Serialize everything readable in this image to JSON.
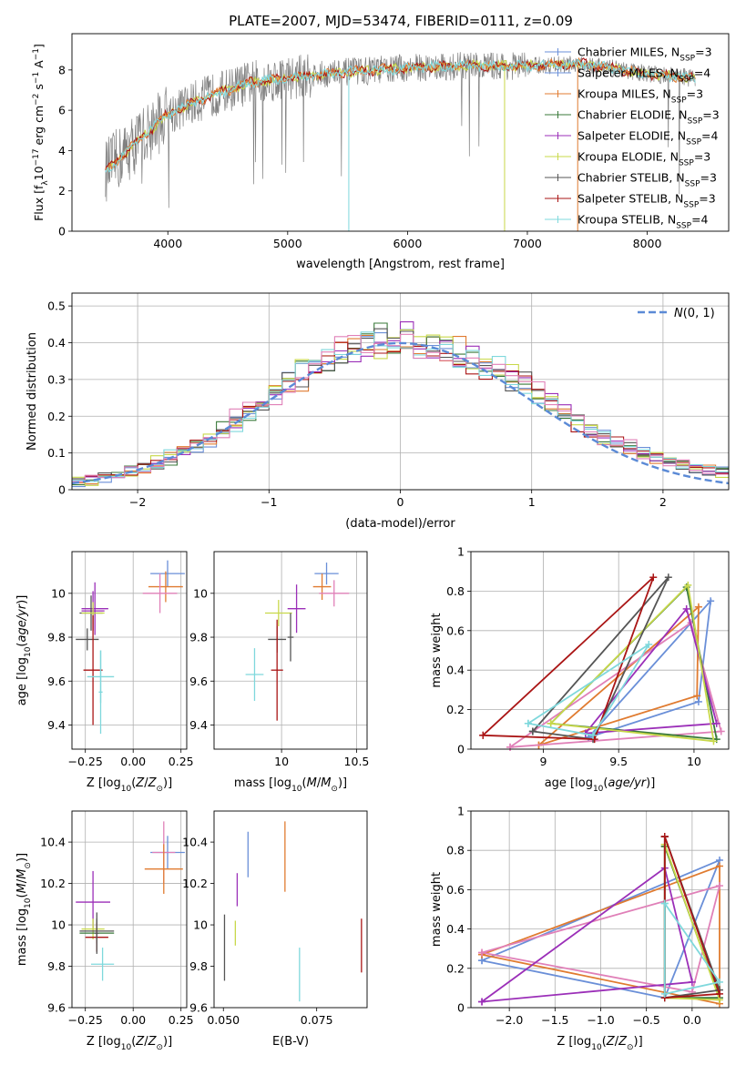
{
  "figure_title": "PLATE=2007, MJD=53474, FIBERID=0111, z=0.09",
  "palette": {
    "Chabrier MILES": "#6a8fd8",
    "Salpeter MILES": "#6a8fd8",
    "Kroupa MILES": "#e07b30",
    "Chabrier ELODIE": "#3a7a3a",
    "Salpeter ELODIE": "#9b2fb8",
    "Kroupa ELODIE": "#c8d84a",
    "Chabrier STELIB": "#555555",
    "Salpeter STELIB": "#aa1515",
    "Kroupa STELIB": "#7fd8dc",
    "pink": "#e080b8"
  },
  "chart_data": [
    {
      "id": "spectrum",
      "type": "line",
      "title": "",
      "xlabel": "wavelength [Angstrom, rest frame]",
      "ylabel": "Flux [f_λ 10^-17 erg cm^-2 s^-1 A^-1]",
      "xlim": [
        3200,
        8680
      ],
      "ylim": [
        0,
        9.8
      ],
      "xticks": [
        4000,
        5000,
        6000,
        7000,
        8000
      ],
      "yticks": [
        0,
        2,
        4,
        6,
        8
      ],
      "grid": false,
      "legend_position": "right",
      "legend": [
        {
          "label": "Chabrier MILES, N_SSP=3",
          "color": "#6a8fd8"
        },
        {
          "label": "Salpeter MILES, N_SSP=4",
          "color": "#6a8fd8"
        },
        {
          "label": "Kroupa MILES, N_SSP=3",
          "color": "#e07b30"
        },
        {
          "label": "Chabrier ELODIE, N_SSP=3",
          "color": "#3a7a3a"
        },
        {
          "label": "Salpeter ELODIE, N_SSP=4",
          "color": "#9b2fb8"
        },
        {
          "label": "Kroupa ELODIE, N_SSP=3",
          "color": "#c8d84a"
        },
        {
          "label": "Chabrier STELIB, N_SSP=3",
          "color": "#555555"
        },
        {
          "label": "Salpeter STELIB, N_SSP=3",
          "color": "#aa1515"
        },
        {
          "label": "Kroupa STELIB, N_SSP=4",
          "color": "#7fd8dc"
        }
      ],
      "data_shape": {
        "x": [
          3500,
          3700,
          4000,
          4300,
          4700,
          5000,
          5500,
          6000,
          6500,
          7000,
          7500,
          8000,
          8400
        ],
        "y": [
          3.1,
          4.2,
          5.8,
          6.6,
          7.4,
          7.6,
          7.9,
          8.1,
          8.2,
          8.2,
          8.3,
          7.8,
          7.6
        ]
      }
    },
    {
      "id": "residuals",
      "type": "bar",
      "xlabel": "(data-model)/error",
      "ylabel": "Normed distribution",
      "xlim": [
        -2.5,
        2.5
      ],
      "ylim": [
        0,
        0.535
      ],
      "xticks": [
        -2,
        -1,
        0,
        1,
        2
      ],
      "yticks": [
        0,
        0.1,
        0.2,
        0.3,
        0.4,
        0.5
      ],
      "grid": true,
      "legend_position": "top-right",
      "legend": [
        {
          "label": "N(0,1)",
          "color": "#5b8ad6"
        }
      ],
      "histogram_bin_width": 0.1,
      "series": [
        {
          "name": "N(0,1)",
          "type": "gaussian",
          "mean": 0,
          "sigma": 1
        }
      ]
    },
    {
      "id": "age_vs_Z",
      "type": "scatter",
      "xlabel": "Z [log10(Z/Z_sun)]",
      "ylabel": "age [log10(age/yr)]",
      "xlim": [
        -0.32,
        0.28
      ],
      "ylim": [
        9.29,
        10.19
      ],
      "xticks": [
        -0.25,
        0.0,
        0.25
      ],
      "xticklabels": [
        "−0.25",
        "0.00",
        "0.25"
      ],
      "yticks": [
        9.4,
        9.6,
        9.8,
        10.0
      ],
      "grid": true,
      "points": [
        {
          "x": 0.18,
          "y": 10.09,
          "xerr": 0.09,
          "yerr": 0.06,
          "color": "#6a8fd8"
        },
        {
          "x": 0.17,
          "y": 10.03,
          "xerr": 0.09,
          "yerr": 0.07,
          "color": "#e07b30"
        },
        {
          "x": 0.14,
          "y": 10.0,
          "xerr": 0.09,
          "yerr": 0.09,
          "color": "#e080b8"
        },
        {
          "x": -0.21,
          "y": 9.92,
          "xerr": 0.06,
          "yerr": 0.09,
          "color": "#9b2fb8"
        },
        {
          "x": -0.2,
          "y": 9.93,
          "xerr": 0.07,
          "yerr": 0.12,
          "color": "#9b2fb8"
        },
        {
          "x": -0.22,
          "y": 9.91,
          "xerr": 0.06,
          "yerr": 0.08,
          "color": "#555555"
        },
        {
          "x": -0.21,
          "y": 9.91,
          "xerr": 0.06,
          "yerr": 0.05,
          "color": "#c8d84a"
        },
        {
          "x": -0.24,
          "y": 9.79,
          "xerr": 0.06,
          "yerr": 0.05,
          "color": "#555555"
        },
        {
          "x": -0.21,
          "y": 9.65,
          "xerr": 0.05,
          "yerr": 0.25,
          "color": "#aa1515"
        },
        {
          "x": -0.17,
          "y": 9.62,
          "xerr": 0.07,
          "yerr": 0.12,
          "color": "#7fd8dc"
        },
        {
          "x": -0.17,
          "y": 9.55,
          "xerr": 0.01,
          "yerr": 0.19,
          "color": "#7fd8dc"
        }
      ]
    },
    {
      "id": "age_vs_mass",
      "type": "scatter",
      "xlabel": "mass [log10(M/M_sun)]",
      "ylabel": "",
      "xlim": [
        9.55,
        10.57
      ],
      "ylim": [
        9.29,
        10.19
      ],
      "xticks": [
        10.0,
        10.5
      ],
      "yticks": [
        9.4,
        9.6,
        9.8,
        10.0
      ],
      "grid": true,
      "points": [
        {
          "x": 10.3,
          "y": 10.09,
          "xerr": 0.08,
          "yerr": 0.05,
          "color": "#6a8fd8"
        },
        {
          "x": 10.27,
          "y": 10.03,
          "xerr": 0.06,
          "yerr": 0.06,
          "color": "#e07b30"
        },
        {
          "x": 10.35,
          "y": 10.0,
          "xerr": 0.1,
          "yerr": 0.06,
          "color": "#e080b8"
        },
        {
          "x": 10.1,
          "y": 9.93,
          "xerr": 0.06,
          "yerr": 0.11,
          "color": "#9b2fb8"
        },
        {
          "x": 9.98,
          "y": 9.91,
          "xerr": 0.09,
          "yerr": 0.06,
          "color": "#c8d84a"
        },
        {
          "x": 9.97,
          "y": 9.79,
          "xerr": 0.06,
          "yerr": 0.06,
          "color": "#555555"
        },
        {
          "x": 9.97,
          "y": 9.65,
          "xerr": 0.04,
          "yerr": 0.23,
          "color": "#aa1515"
        },
        {
          "x": 9.82,
          "y": 9.63,
          "xerr": 0.06,
          "yerr": 0.12,
          "color": "#7fd8dc"
        },
        {
          "x": 10.06,
          "y": 9.8,
          "xerr": 0.02,
          "yerr": 0.11,
          "color": "#555555"
        }
      ]
    },
    {
      "id": "weight_vs_age",
      "type": "line",
      "xlabel": "age [log10(age/yr)]",
      "ylabel": "mass weight",
      "xlim": [
        8.52,
        10.23
      ],
      "ylim": [
        0,
        1.0
      ],
      "xticks": [
        9.0,
        9.5,
        10.0
      ],
      "yticks": [
        0.0,
        0.2,
        0.4,
        0.6,
        0.8,
        1.0
      ],
      "grid": true,
      "series": [
        {
          "color": "#6a8fd8",
          "x": [
            9.3,
            10.03,
            10.11,
            9.3
          ],
          "y": [
            0.06,
            0.24,
            0.75,
            0.06
          ]
        },
        {
          "color": "#e07b30",
          "x": [
            8.97,
            10.02,
            10.03,
            8.97
          ],
          "y": [
            0.02,
            0.27,
            0.72,
            0.02
          ]
        },
        {
          "color": "#e080b8",
          "x": [
            8.78,
            9.98,
            10.18,
            8.78
          ],
          "y": [
            0.01,
            0.64,
            0.09,
            0.01
          ]
        },
        {
          "color": "#3a7a3a",
          "x": [
            9.05,
            9.95,
            10.15,
            9.05
          ],
          "y": [
            0.13,
            0.82,
            0.05,
            0.13
          ]
        },
        {
          "color": "#9b2fb8",
          "x": [
            9.28,
            9.95,
            10.15,
            9.28
          ],
          "y": [
            0.08,
            0.71,
            0.13,
            0.08
          ]
        },
        {
          "color": "#c8d84a",
          "x": [
            9.05,
            9.96,
            10.13,
            9.05
          ],
          "y": [
            0.13,
            0.83,
            0.04,
            0.13
          ]
        },
        {
          "color": "#555555",
          "x": [
            8.93,
            9.83,
            9.33,
            8.93
          ],
          "y": [
            0.09,
            0.87,
            0.05,
            0.09
          ]
        },
        {
          "color": "#aa1515",
          "x": [
            8.6,
            9.73,
            9.34,
            8.6
          ],
          "y": [
            0.07,
            0.87,
            0.05,
            0.07
          ]
        },
        {
          "color": "#7fd8dc",
          "x": [
            8.9,
            9.7,
            9.33,
            8.9
          ],
          "y": [
            0.13,
            0.53,
            0.07,
            0.13
          ]
        }
      ]
    },
    {
      "id": "mass_vs_Z",
      "type": "scatter",
      "xlabel": "Z [log10(Z/Z_sun)]",
      "ylabel": "mass [log10(M/M_sun)]",
      "xlim": [
        -0.32,
        0.28
      ],
      "ylim": [
        9.6,
        10.55
      ],
      "xticks": [
        -0.25,
        0.0,
        0.25
      ],
      "xticklabels": [
        "−0.25",
        "0.00",
        "0.25"
      ],
      "yticks": [
        9.6,
        9.8,
        10.0,
        10.2,
        10.4
      ],
      "grid": true,
      "points": [
        {
          "x": 0.18,
          "y": 10.35,
          "xerr": 0.09,
          "yerr": 0.08,
          "color": "#6a8fd8"
        },
        {
          "x": 0.16,
          "y": 10.35,
          "xerr": 0.06,
          "yerr": 0.15,
          "color": "#e080b8"
        },
        {
          "x": 0.16,
          "y": 10.27,
          "xerr": 0.1,
          "yerr": 0.12,
          "color": "#e07b30"
        },
        {
          "x": -0.21,
          "y": 10.11,
          "xerr": 0.09,
          "yerr": 0.15,
          "color": "#9b2fb8"
        },
        {
          "x": -0.21,
          "y": 9.98,
          "xerr": 0.06,
          "yerr": 0.05,
          "color": "#c8d84a"
        },
        {
          "x": -0.19,
          "y": 9.96,
          "xerr": 0.09,
          "yerr": 0.03,
          "color": "#3a7a3a"
        },
        {
          "x": -0.19,
          "y": 9.97,
          "xerr": 0.09,
          "yerr": 0.06,
          "color": "#555555"
        },
        {
          "x": -0.19,
          "y": 9.94,
          "xerr": 0.06,
          "yerr": 0.07,
          "color": "#aa1515"
        },
        {
          "x": -0.19,
          "y": 9.96,
          "xerr": 0.01,
          "yerr": 0.1,
          "color": "#555555"
        },
        {
          "x": -0.16,
          "y": 9.81,
          "xerr": 0.06,
          "yerr": 0.08,
          "color": "#7fd8dc"
        }
      ]
    },
    {
      "id": "ebv",
      "type": "scatter",
      "xlabel": "E(B-V)",
      "ylabel": "",
      "xlim": [
        0.0475,
        0.0885
      ],
      "ylim": [
        9.6,
        10.55
      ],
      "xticks": [
        0.05,
        0.075
      ],
      "xticklabels": [
        "0.050",
        "0.075"
      ],
      "yticks": [
        9.6,
        9.8,
        10.0,
        10.2,
        10.4
      ],
      "grid": false,
      "points": [
        {
          "x": 0.0566,
          "y": 10.34,
          "yerr": 0.11,
          "color": "#6a8fd8"
        },
        {
          "x": 0.0665,
          "y": 10.33,
          "yerr": 0.17,
          "color": "#e07b30"
        },
        {
          "x": 0.0537,
          "y": 10.17,
          "yerr": 0.08,
          "color": "#9b2fb8"
        },
        {
          "x": 0.0503,
          "y": 9.89,
          "yerr": 0.16,
          "color": "#555555"
        },
        {
          "x": 0.0532,
          "y": 9.96,
          "yerr": 0.06,
          "color": "#c8d84a"
        },
        {
          "x": 0.0704,
          "y": 9.76,
          "yerr": 0.13,
          "color": "#7fd8dc"
        },
        {
          "x": 0.087,
          "y": 9.9,
          "yerr": 0.13,
          "color": "#aa1515"
        }
      ]
    },
    {
      "id": "weight_vs_Z",
      "type": "line",
      "xlabel": "Z [log10(Z/Z_sun)]",
      "ylabel": "mass weight",
      "xlim": [
        -2.42,
        0.4
      ],
      "ylim": [
        0,
        1.0
      ],
      "xticks": [
        -2.0,
        -1.5,
        -1.0,
        -0.5,
        0.0
      ],
      "xticklabels": [
        "−2.0",
        "−1.5",
        "−1.0",
        "−0.5",
        "0.0"
      ],
      "yticks": [
        0.0,
        0.2,
        0.4,
        0.6,
        0.8,
        1.0
      ],
      "grid": true,
      "series": [
        {
          "color": "#6a8fd8",
          "x": [
            -2.3,
            0.3,
            -0.3,
            -2.3
          ],
          "y": [
            0.24,
            0.75,
            0.05,
            0.24
          ]
        },
        {
          "color": "#e07b30",
          "x": [
            -2.3,
            0.3,
            0.3,
            -2.3
          ],
          "y": [
            0.27,
            0.72,
            0.02,
            0.27
          ]
        },
        {
          "color": "#e080b8",
          "x": [
            -2.3,
            0.0,
            0.3,
            -2.3
          ],
          "y": [
            0.28,
            0.08,
            0.62,
            0.28
          ]
        },
        {
          "color": "#9b2fb8",
          "x": [
            -2.3,
            -0.3,
            0.0,
            -2.3
          ],
          "y": [
            0.03,
            0.71,
            0.13,
            0.03
          ]
        },
        {
          "color": "#3a7a3a",
          "x": [
            -0.3,
            -0.3,
            0.3,
            -0.3
          ],
          "y": [
            0.82,
            0.05,
            0.05,
            0.82
          ]
        },
        {
          "color": "#c8d84a",
          "x": [
            -0.3,
            0.3,
            -0.3,
            -0.3
          ],
          "y": [
            0.83,
            0.04,
            0.05,
            0.83
          ]
        },
        {
          "color": "#555555",
          "x": [
            -0.3,
            -0.3,
            0.3,
            -0.3
          ],
          "y": [
            0.87,
            0.05,
            0.09,
            0.87
          ]
        },
        {
          "color": "#aa1515",
          "x": [
            -0.3,
            -0.3,
            0.3,
            -0.3
          ],
          "y": [
            0.87,
            0.05,
            0.07,
            0.87
          ]
        },
        {
          "color": "#7fd8dc",
          "x": [
            -0.3,
            -0.3,
            0.3,
            -0.3
          ],
          "y": [
            0.53,
            0.07,
            0.13,
            0.53
          ]
        }
      ]
    }
  ]
}
